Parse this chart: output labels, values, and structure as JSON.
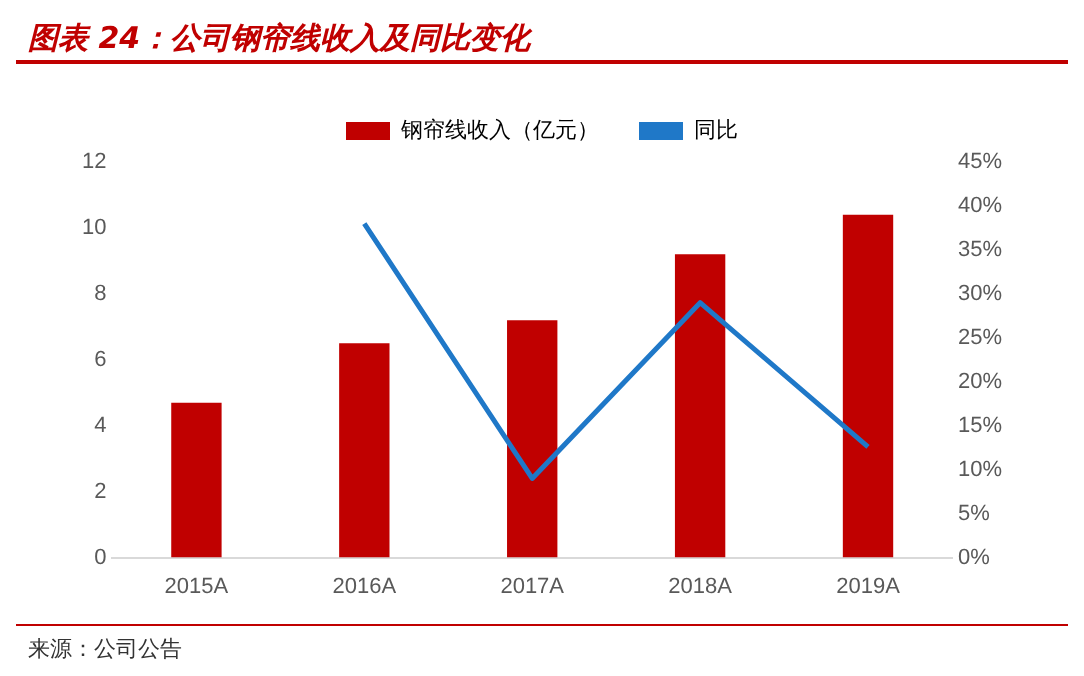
{
  "chart_data": {
    "type": "bar",
    "title": "图表 24：公司钢帘线收入及同比变化",
    "categories": [
      "2015A",
      "2016A",
      "2017A",
      "2018A",
      "2019A"
    ],
    "series": [
      {
        "name": "钢帘线收入（亿元）",
        "color": "#c00000",
        "values": [
          4.7,
          6.5,
          7.2,
          9.2,
          10.4
        ]
      },
      {
        "name": "同比",
        "type": "line",
        "axis": "y2",
        "color": "#1f78c8",
        "values": [
          null,
          38,
          9,
          29,
          12.6
        ]
      }
    ],
    "ylim": [
      0,
      12
    ],
    "yticks": [
      0,
      2,
      4,
      6,
      8,
      10,
      12
    ],
    "y2lim": [
      0,
      45
    ],
    "y2ticks": [
      {
        "value": 0,
        "label": "0%"
      },
      {
        "value": 5,
        "label": "5%"
      },
      {
        "value": 10,
        "label": "10%"
      },
      {
        "value": 15,
        "label": "15%"
      },
      {
        "value": 20,
        "label": "20%"
      },
      {
        "value": 25,
        "label": "25%"
      },
      {
        "value": 30,
        "label": "30%"
      },
      {
        "value": 35,
        "label": "35%"
      },
      {
        "value": 40,
        "label": "40%"
      },
      {
        "value": 45,
        "label": "45%"
      }
    ],
    "legend": "top",
    "grid": false,
    "marker": "none",
    "annotations": [
      "来源：公司公告"
    ]
  }
}
